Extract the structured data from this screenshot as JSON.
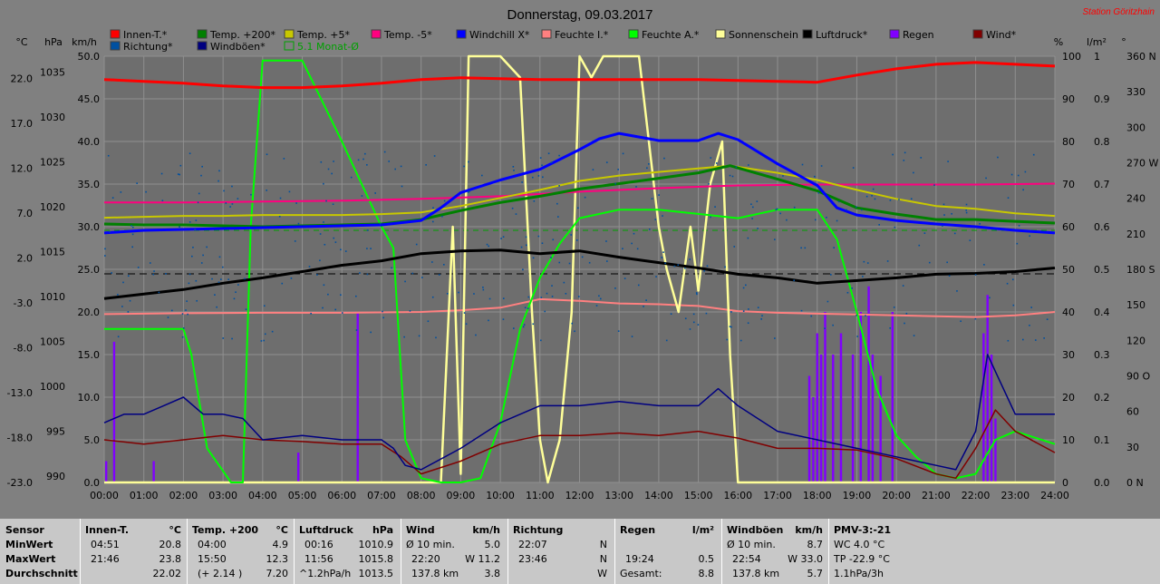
{
  "title": "Donnerstag, 09.03.2017",
  "station": "Station Göritzhain",
  "colors": {
    "background": "#808080",
    "plot_bg": "#6e6e6e",
    "grid": "#909090",
    "innen_t": "#ff0000",
    "temp200": "#008000",
    "temp5": "#c8c800",
    "temp_minus5": "#ff007f",
    "windchill": "#0000ff",
    "feuchte_i": "#ff8080",
    "feuchte_a": "#00ff00",
    "sonnenschein": "#ffff99",
    "luftdruck": "#000000",
    "regen": "#8000ff",
    "wind": "#800000",
    "richtung": "#0050a0",
    "windboeen": "#000080",
    "monat": "#00a000"
  },
  "legend": [
    {
      "label": "Innen-T.*",
      "color": "#ff0000"
    },
    {
      "label": "Temp. +200*",
      "color": "#008000"
    },
    {
      "label": "Temp. +5*",
      "color": "#c8c800"
    },
    {
      "label": "Temp. -5*",
      "color": "#ff007f"
    },
    {
      "label": "Windchill X*",
      "color": "#0000ff"
    },
    {
      "label": "Feuchte I.*",
      "color": "#ff8080"
    },
    {
      "label": "Feuchte A.*",
      "color": "#00ff00"
    },
    {
      "label": "Sonnenschein",
      "color": "#ffff99"
    },
    {
      "label": "Luftdruck*",
      "color": "#000000"
    },
    {
      "label": "Regen",
      "color": "#8000ff"
    },
    {
      "label": "Wind*",
      "color": "#800000"
    },
    {
      "label": "Richtung*",
      "color": "#0050a0"
    },
    {
      "label": "Windböen*",
      "color": "#000080"
    },
    {
      "label": "5.1 Monat-Ø",
      "color": "#00a000"
    }
  ],
  "axis_units": {
    "celsius": "°C",
    "hpa": "hPa",
    "kmh": "km/h",
    "percent": "%",
    "rain": "l/m²",
    "degree": "°"
  },
  "chart_data": {
    "type": "line",
    "x_ticks": [
      "00:00",
      "01:00",
      "02:00",
      "03:00",
      "04:00",
      "05:00",
      "06:00",
      "07:00",
      "08:00",
      "09:00",
      "10:00",
      "11:00",
      "12:00",
      "13:00",
      "14:00",
      "15:00",
      "16:00",
      "17:00",
      "18:00",
      "19:00",
      "20:00",
      "21:00",
      "22:00",
      "23:00",
      "24:00"
    ],
    "y_celsius_ticks": [
      "22.0",
      "17.0",
      "12.0",
      "7.0",
      "2.0",
      "-3.0",
      "-8.0",
      "-13.0",
      "-18.0",
      "-23.0"
    ],
    "y_hpa_ticks": [
      "1035",
      "1030",
      "1025",
      "1020",
      "1015",
      "1010",
      "1005",
      "1000",
      "995",
      "990"
    ],
    "y_kmh_ticks": [
      "50.0",
      "45.0",
      "40.0",
      "35.0",
      "30.0",
      "25.0",
      "20.0",
      "15.0",
      "10.0",
      "5.0",
      "0.0"
    ],
    "y_percent_ticks": [
      "100",
      "90",
      "80",
      "70",
      "60",
      "50",
      "40",
      "30",
      "20",
      "10",
      "0"
    ],
    "y_rain_ticks": [
      "1",
      "0.9",
      "0.8",
      "0.7",
      "0.6",
      "0.5",
      "0.4",
      "0.3",
      "0.2",
      "0.1",
      "0.0"
    ],
    "y_dir_ticks": [
      "360 N",
      "330",
      "300",
      "270 W",
      "240",
      "210",
      "180 S",
      "150",
      "120",
      "90 O",
      "60",
      "30",
      "0 N"
    ],
    "ylim_celsius": [
      -23,
      24.5
    ],
    "ylim_hpa": [
      990,
      1037.5
    ],
    "ylim_kmh": [
      0,
      50
    ],
    "series": [
      {
        "name": "Innen-T.*",
        "axis": "celsius",
        "x": [
          0,
          1,
          2,
          3,
          4,
          5,
          6,
          7,
          8,
          9,
          10,
          11,
          12,
          13,
          14,
          15,
          16,
          17,
          18,
          19,
          20,
          21,
          22,
          23,
          24
        ],
        "values": [
          21.9,
          21.7,
          21.5,
          21.2,
          21.0,
          21.0,
          21.2,
          21.5,
          21.9,
          22.1,
          22.0,
          21.9,
          21.9,
          21.9,
          21.9,
          21.9,
          21.8,
          21.7,
          21.6,
          22.4,
          23.1,
          23.6,
          23.8,
          23.6,
          23.4
        ]
      },
      {
        "name": "Temp. +200*",
        "axis": "celsius",
        "x": [
          0,
          1,
          2,
          3,
          4,
          5,
          6,
          7,
          8,
          9,
          10,
          11,
          12,
          13,
          14,
          15,
          15.8,
          17,
          18,
          19,
          20,
          21,
          22,
          23,
          24
        ],
        "values": [
          5.8,
          5.7,
          5.7,
          5.6,
          5.5,
          5.6,
          5.7,
          5.8,
          6.3,
          7.3,
          8.2,
          8.9,
          9.7,
          10.3,
          10.9,
          11.5,
          12.3,
          10.8,
          9.5,
          7.6,
          6.9,
          6.3,
          6.3,
          6.1,
          5.9
        ]
      },
      {
        "name": "Temp. +5*",
        "axis": "celsius",
        "x": [
          0,
          1,
          2,
          3,
          4,
          5,
          6,
          7,
          8,
          9,
          10,
          11,
          12,
          13,
          14,
          15,
          15.8,
          17,
          18,
          19,
          20,
          21,
          22,
          23,
          24
        ],
        "values": [
          6.5,
          6.6,
          6.7,
          6.7,
          6.8,
          6.8,
          6.8,
          6.9,
          7.1,
          7.8,
          8.7,
          9.6,
          10.6,
          11.2,
          11.6,
          12.0,
          12.3,
          11.5,
          10.7,
          9.6,
          8.6,
          7.8,
          7.5,
          7.0,
          6.7
        ]
      },
      {
        "name": "Temp. -5*",
        "axis": "celsius",
        "x": [
          0,
          2,
          4,
          6,
          8,
          10,
          12,
          14,
          16,
          18,
          20,
          22,
          24
        ],
        "values": [
          8.2,
          8.2,
          8.3,
          8.4,
          8.6,
          8.9,
          9.4,
          9.8,
          10.1,
          10.2,
          10.2,
          10.2,
          10.3
        ]
      },
      {
        "name": "Windchill X*",
        "axis": "celsius",
        "x": [
          0,
          1,
          2,
          3,
          4,
          5,
          6,
          7,
          8,
          8.5,
          9,
          10,
          11,
          12,
          12.5,
          13,
          14,
          15,
          15.5,
          16,
          17,
          18,
          18.5,
          19,
          20,
          21,
          22,
          22.5,
          23,
          24
        ],
        "values": [
          4.8,
          5.1,
          5.2,
          5.3,
          5.4,
          5.5,
          5.6,
          5.7,
          6.2,
          7.6,
          9.3,
          10.7,
          11.9,
          14.1,
          15.3,
          15.9,
          15.1,
          15.1,
          15.9,
          15.2,
          12.5,
          10.1,
          7.6,
          6.8,
          6.2,
          5.8,
          5.5,
          5.3,
          5.1,
          4.8
        ]
      },
      {
        "name": "Luftdruck*",
        "axis": "hpa",
        "x": [
          0,
          1,
          2,
          3,
          4,
          5,
          6,
          7,
          8,
          9,
          10,
          11,
          12,
          13,
          14,
          15,
          16,
          17,
          18,
          19,
          20,
          21,
          22,
          23,
          24
        ],
        "values": [
          1010.5,
          1011.0,
          1011.5,
          1012.2,
          1012.8,
          1013.5,
          1014.2,
          1014.7,
          1015.5,
          1015.8,
          1015.9,
          1015.5,
          1015.8,
          1015.1,
          1014.5,
          1013.9,
          1013.2,
          1012.8,
          1012.2,
          1012.5,
          1012.8,
          1013.2,
          1013.3,
          1013.5,
          1013.9
        ]
      },
      {
        "name": "Feuchte I.*",
        "axis": "percent",
        "x": [
          0,
          2,
          4,
          6,
          8,
          9,
          10,
          11,
          12,
          13,
          14,
          15,
          16,
          17,
          18,
          19,
          20,
          21,
          22,
          23,
          24
        ],
        "values": [
          39.5,
          39.7,
          39.8,
          39.8,
          40.0,
          40.4,
          41.0,
          43.0,
          42.6,
          42.0,
          41.8,
          41.4,
          40.2,
          39.8,
          39.6,
          39.4,
          39.2,
          39.0,
          38.8,
          39.2,
          40.0
        ]
      },
      {
        "name": "Feuchte A.*",
        "axis": "percent",
        "x": [
          0,
          2,
          2.2,
          2.6,
          3.2,
          3.5,
          3.7,
          4.0,
          4.5,
          5.0,
          6.0,
          7.0,
          7.3,
          7.6,
          8.0,
          8.5,
          9.0,
          9.5,
          10.0,
          10.5,
          11.0,
          11.5,
          12.0,
          13.0,
          14.0,
          15.0,
          16.0,
          17.0,
          17.5,
          18.0,
          18.5,
          19.0,
          19.5,
          20.0,
          20.5,
          21.0,
          21.5,
          22.0,
          22.5,
          23.0,
          24.0
        ],
        "values": [
          36,
          36,
          30,
          8,
          0,
          0,
          60,
          99,
          99,
          99,
          80,
          60,
          55,
          10,
          1,
          0,
          0,
          1,
          14,
          36,
          48,
          56,
          62,
          64,
          64,
          63,
          62,
          64,
          64,
          64,
          57,
          40,
          22,
          11,
          6,
          2,
          1,
          2,
          10,
          12,
          9
        ]
      },
      {
        "name": "Sonnenschein",
        "axis": "percent",
        "x": [
          0,
          8.5,
          8.8,
          9.0,
          9.2,
          9.5,
          10.0,
          10.5,
          10.8,
          11.0,
          11.2,
          11.5,
          11.8,
          12.0,
          12.3,
          12.6,
          13.0,
          13.5,
          14.0,
          14.2,
          14.5,
          14.8,
          15.0,
          15.3,
          15.6,
          15.8,
          16.0,
          24
        ],
        "values": [
          0,
          0,
          60,
          2,
          100,
          100,
          100,
          95,
          40,
          10,
          0,
          10,
          40,
          100,
          95,
          100,
          100,
          100,
          60,
          50,
          40,
          60,
          45,
          70,
          80,
          30,
          0,
          0
        ]
      },
      {
        "name": "Wind*",
        "axis": "kmh",
        "x": [
          0,
          1,
          2,
          3,
          4,
          5,
          6,
          7,
          7.5,
          8,
          9,
          10,
          11,
          12,
          13,
          14,
          15,
          16,
          17,
          18,
          19,
          20,
          21,
          21.5,
          22,
          22.5,
          23,
          24
        ],
        "values": [
          5.0,
          4.5,
          5.0,
          5.5,
          5.0,
          4.8,
          4.5,
          4.5,
          3.0,
          1.0,
          2.5,
          4.5,
          5.5,
          5.5,
          5.8,
          5.5,
          6.0,
          5.2,
          4.0,
          4.0,
          3.8,
          2.8,
          1.0,
          0.5,
          4.0,
          8.5,
          6.0,
          3.5
        ]
      },
      {
        "name": "Windböen*",
        "axis": "kmh",
        "x": [
          0,
          0.5,
          1,
          1.5,
          2,
          2.5,
          3,
          3.5,
          4,
          5,
          6,
          7,
          7.3,
          7.6,
          8,
          9,
          10,
          11,
          12,
          13,
          14,
          15,
          15.5,
          16,
          17,
          18,
          19,
          20,
          21,
          21.5,
          22,
          22.3,
          22.6,
          23,
          24
        ],
        "values": [
          7,
          8,
          8,
          9,
          10,
          8,
          8,
          7.5,
          5,
          5.5,
          5.0,
          5.0,
          4,
          2,
          1.5,
          4,
          7,
          9,
          9,
          9.5,
          9,
          9,
          11,
          9,
          6,
          5,
          4,
          3,
          2,
          1.5,
          6,
          15,
          12,
          8,
          8
        ]
      },
      {
        "name": "Regen",
        "axis": "rain",
        "type": "bar",
        "x": [
          0.05,
          0.25,
          1.25,
          4.9,
          6.4,
          17.8,
          17.9,
          18.0,
          18.1,
          18.2,
          18.4,
          18.6,
          18.9,
          19.1,
          19.3,
          19.4,
          19.6,
          19.9,
          22.2,
          22.3,
          22.4,
          22.5
        ],
        "values": [
          0.05,
          0.33,
          0.05,
          0.07,
          0.4,
          0.25,
          0.2,
          0.35,
          0.3,
          0.4,
          0.3,
          0.35,
          0.3,
          0.4,
          0.46,
          0.3,
          0.25,
          0.4,
          0.35,
          0.44,
          0.3,
          0.15
        ]
      }
    ]
  },
  "stats": {
    "sensor": {
      "label": "Sensor",
      "rows": [
        "MinWert",
        "MaxWert",
        "Durchschnitt"
      ]
    },
    "innen": {
      "title": "Innen-T.",
      "unit": "°C",
      "r1": [
        "04:51",
        "20.8"
      ],
      "r2": [
        "21:46",
        "23.8"
      ],
      "r3": [
        "",
        "22.02"
      ]
    },
    "temp200": {
      "title": "Temp. +200",
      "unit": "°C",
      "r1": [
        "04:00",
        "4.9"
      ],
      "r2": [
        "15:50",
        "12.3"
      ],
      "r3": [
        "(+ 2.14 )",
        "7.20"
      ]
    },
    "luftdruck": {
      "title": "Luftdruck",
      "unit": "hPa",
      "r1": [
        "00:16",
        "1010.9"
      ],
      "r2": [
        "11:56",
        "1015.8"
      ],
      "r3": [
        "^1.2hPa/h",
        "1013.5"
      ]
    },
    "wind": {
      "title": "Wind",
      "unit": "km/h",
      "r1": [
        "Ø 10 min.",
        "5.0"
      ],
      "r2": [
        "22:20",
        "W 11.2"
      ],
      "r3": [
        "137.8 km",
        "3.8"
      ]
    },
    "richtung": {
      "title": "Richtung",
      "unit": "",
      "r1": [
        "22:07",
        "N"
      ],
      "r2": [
        "23:46",
        "N"
      ],
      "r3": [
        "",
        "W"
      ]
    },
    "regen": {
      "title": "Regen",
      "unit": "l/m²",
      "r1": [
        "",
        ""
      ],
      "r2": [
        "19:24",
        "0.5"
      ],
      "r3": [
        "Gesamt:",
        "8.8"
      ]
    },
    "boeen": {
      "title": "Windböen",
      "unit": "km/h",
      "r1": [
        "Ø 10 min.",
        "8.7"
      ],
      "r2": [
        "22:54",
        "W 33.0"
      ],
      "r3": [
        "137.8 km",
        "5.7"
      ]
    },
    "pmv": {
      "title": "PMV-3:-21",
      "r1": "WC 4.0 °C",
      "r2": "TP -22.9 °C",
      "r3": "1.1hPa/3h"
    }
  }
}
